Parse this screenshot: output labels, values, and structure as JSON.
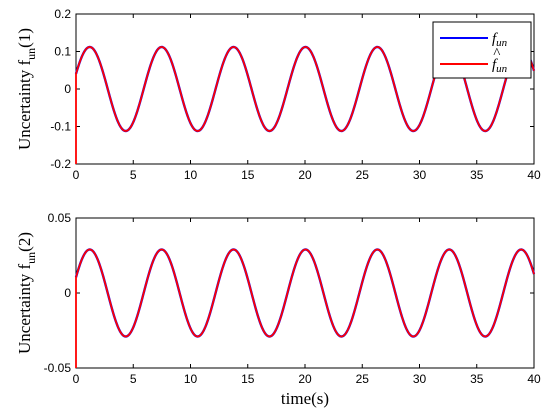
{
  "chart_data": [
    {
      "type": "line",
      "ylabel_main": "Uncertainty f",
      "ylabel_sub": "un",
      "ylabel_index": "(1)",
      "xlim": [
        0,
        40
      ],
      "ylim": [
        -0.2,
        0.2
      ],
      "xticks": [
        "0",
        "5",
        "10",
        "15",
        "20",
        "25",
        "30",
        "35",
        "40"
      ],
      "yticks": [
        "-0.2",
        "-0.1",
        "0",
        "0.1",
        "0.2"
      ],
      "grid": false,
      "legend_position": "top-right",
      "signal": {
        "amplitude": 0.112,
        "period": 6.28,
        "peak_time": 1.2
      },
      "series": [
        {
          "name": "f_un",
          "color": "#0000ff"
        },
        {
          "name": "f̂_un",
          "color": "#ff0000",
          "initial_jump_from": -0.2
        }
      ]
    },
    {
      "type": "line",
      "ylabel_main": "Uncertainty f",
      "ylabel_sub": "un",
      "ylabel_index": "(2)",
      "xlabel": "time(s)",
      "xlim": [
        0,
        40
      ],
      "ylim": [
        -0.05,
        0.05
      ],
      "xticks": [
        "0",
        "5",
        "10",
        "15",
        "20",
        "25",
        "30",
        "35",
        "40"
      ],
      "yticks": [
        "-0.05",
        "0",
        "0.05"
      ],
      "grid": false,
      "signal": {
        "amplitude": 0.029,
        "period": 6.28,
        "peak_time": 1.2
      },
      "series": [
        {
          "name": "f_un",
          "color": "#0000ff"
        },
        {
          "name": "f̂_un",
          "color": "#ff0000",
          "initial_jump_from": -0.05
        }
      ]
    }
  ],
  "legend": {
    "line1": {
      "base": "f",
      "sub": "un"
    },
    "line2": {
      "base": "f",
      "sub": "un",
      "hat": "^"
    }
  }
}
